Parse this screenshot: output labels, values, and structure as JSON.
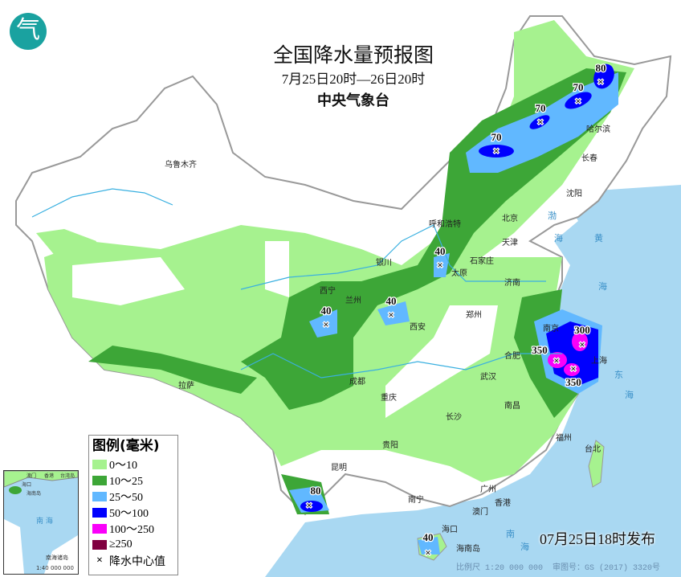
{
  "title": {
    "main": "全国降水量预报图",
    "period": "7月25日20时—26日20时",
    "agency": "中央气象台"
  },
  "logo": {
    "icon": "cma-logo",
    "text": "气"
  },
  "legend": {
    "heading": "图例(毫米)",
    "items": [
      {
        "label": "0～10",
        "color": "#a6f28f"
      },
      {
        "label": "10～25",
        "color": "#3da637"
      },
      {
        "label": "25～50",
        "color": "#61b8ff"
      },
      {
        "label": "50～100",
        "color": "#0000fe"
      },
      {
        "label": "100～250",
        "color": "#fa00fa"
      },
      {
        "label": "≥250",
        "color": "#800040"
      }
    ],
    "center_label": "降水中心值"
  },
  "issued": "07月25日18时发布",
  "footer": {
    "scale": "比例尺 1:20 000 000",
    "approval": "审图号：GS (2017) 3320号"
  },
  "inset": {
    "sea": "南 海",
    "islands": "南海诸岛",
    "scale": "1:40 000 000",
    "labels": [
      "澳门",
      "香港",
      "台湾岛",
      "海口",
      "海南岛"
    ]
  },
  "seas": [
    "渤",
    "海",
    "黄",
    "海",
    "东",
    "海",
    "南",
    "海"
  ],
  "cities": [
    "乌鲁木齐",
    "拉萨",
    "西宁",
    "兰州",
    "银川",
    "呼和浩特",
    "北京",
    "天津",
    "石家庄",
    "太原",
    "济南",
    "郑州",
    "西安",
    "成都",
    "重庆",
    "贵阳",
    "昆明",
    "南宁",
    "广州",
    "澳门",
    "香港",
    "海口",
    "海南岛",
    "长沙",
    "武汉",
    "南昌",
    "合肥",
    "南京",
    "上海",
    "福州",
    "台北",
    "沈阳",
    "长春",
    "哈尔滨"
  ],
  "rain_centers": [
    "70",
    "70",
    "70",
    "80",
    "40",
    "40",
    "40",
    "80",
    "40",
    "350",
    "350",
    "300"
  ]
}
